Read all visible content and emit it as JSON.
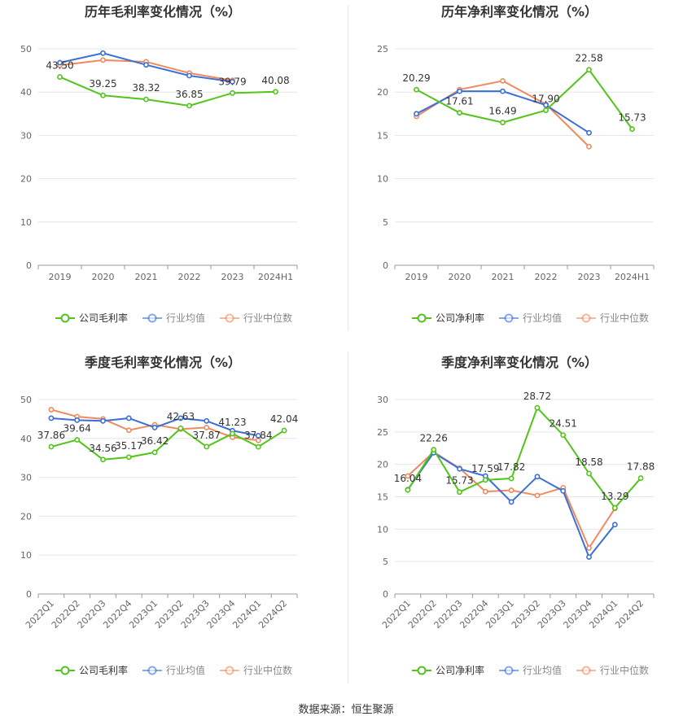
{
  "source_text": "数据来源：恒生聚源",
  "legend_labels": {
    "company_gross": "公司毛利率",
    "company_net": "公司净利率",
    "industry_avg": "行业均值",
    "industry_median": "行业中位数"
  },
  "colors": {
    "company": "#52c41a",
    "avg": "#3a6fd8",
    "median": "#f08a5d"
  },
  "chart_data": [
    {
      "type": "line",
      "title": "历年毛利率变化情况（%）",
      "categories": [
        "2019",
        "2020",
        "2021",
        "2022",
        "2023",
        "2024H1"
      ],
      "ylim": [
        0,
        50
      ],
      "yticks": [
        0,
        10,
        20,
        30,
        40,
        50
      ],
      "series": [
        {
          "name": "公司毛利率",
          "key": "company",
          "values": [
            43.5,
            39.25,
            38.32,
            36.85,
            39.79,
            40.08
          ],
          "labels": true
        },
        {
          "name": "行业均值",
          "key": "avg",
          "values": [
            46.8,
            49.0,
            46.3,
            43.8,
            42.4,
            null
          ]
        },
        {
          "name": "行业中位数",
          "key": "median",
          "values": [
            46.2,
            47.4,
            47.0,
            44.4,
            42.7,
            null
          ]
        }
      ]
    },
    {
      "type": "line",
      "title": "历年净利率变化情况（%）",
      "categories": [
        "2019",
        "2020",
        "2021",
        "2022",
        "2023",
        "2024H1"
      ],
      "ylim": [
        0,
        25
      ],
      "yticks": [
        0,
        5,
        10,
        15,
        20,
        25
      ],
      "series": [
        {
          "name": "公司净利率",
          "key": "company",
          "values": [
            20.29,
            17.61,
            16.49,
            17.9,
            22.58,
            15.73
          ],
          "labels": true
        },
        {
          "name": "行业均值",
          "key": "avg",
          "values": [
            17.5,
            20.1,
            20.1,
            18.5,
            15.3,
            null
          ]
        },
        {
          "name": "行业中位数",
          "key": "median",
          "values": [
            17.2,
            20.3,
            21.3,
            18.6,
            13.7,
            null
          ]
        }
      ]
    },
    {
      "type": "line",
      "title": "季度毛利率变化情况（%）",
      "categories": [
        "2022Q1",
        "2022Q2",
        "2022Q3",
        "2022Q4",
        "2023Q1",
        "2023Q2",
        "2023Q3",
        "2023Q4",
        "2024Q1",
        "2024Q2"
      ],
      "ylim": [
        0,
        50
      ],
      "yticks": [
        0,
        10,
        20,
        30,
        40,
        50
      ],
      "rotate_x": true,
      "series": [
        {
          "name": "公司毛利率",
          "key": "company",
          "values": [
            37.86,
            39.64,
            34.56,
            35.17,
            36.42,
            42.63,
            37.87,
            41.23,
            37.84,
            42.04
          ],
          "labels": true
        },
        {
          "name": "行业均值",
          "key": "avg",
          "values": [
            45.2,
            44.7,
            44.5,
            45.2,
            42.8,
            45.2,
            44.5,
            42.0,
            40.7,
            null
          ]
        },
        {
          "name": "行业中位数",
          "key": "median",
          "values": [
            47.4,
            45.6,
            45.0,
            42.1,
            43.5,
            42.4,
            42.8,
            40.3,
            39.5,
            null
          ]
        }
      ]
    },
    {
      "type": "line",
      "title": "季度净利率变化情况（%）",
      "categories": [
        "2022Q1",
        "2022Q2",
        "2022Q3",
        "2022Q4",
        "2023Q1",
        "2023Q2",
        "2023Q3",
        "2023Q4",
        "2024Q1",
        "2024Q2"
      ],
      "ylim": [
        0,
        30
      ],
      "yticks": [
        0,
        5,
        10,
        15,
        20,
        25,
        30
      ],
      "rotate_x": true,
      "series": [
        {
          "name": "公司净利率",
          "key": "company",
          "values": [
            16.04,
            22.26,
            15.73,
            17.59,
            17.82,
            28.72,
            24.51,
            18.58,
            13.29,
            17.88
          ],
          "labels": true
        },
        {
          "name": "行业均值",
          "key": "avg",
          "values": [
            16.1,
            21.8,
            19.3,
            18.2,
            14.2,
            18.1,
            15.9,
            5.7,
            10.7,
            null
          ]
        },
        {
          "name": "行业中位数",
          "key": "median",
          "values": [
            18.2,
            21.9,
            19.4,
            15.8,
            16.0,
            15.2,
            16.4,
            7.1,
            13.2,
            null
          ]
        }
      ]
    }
  ]
}
